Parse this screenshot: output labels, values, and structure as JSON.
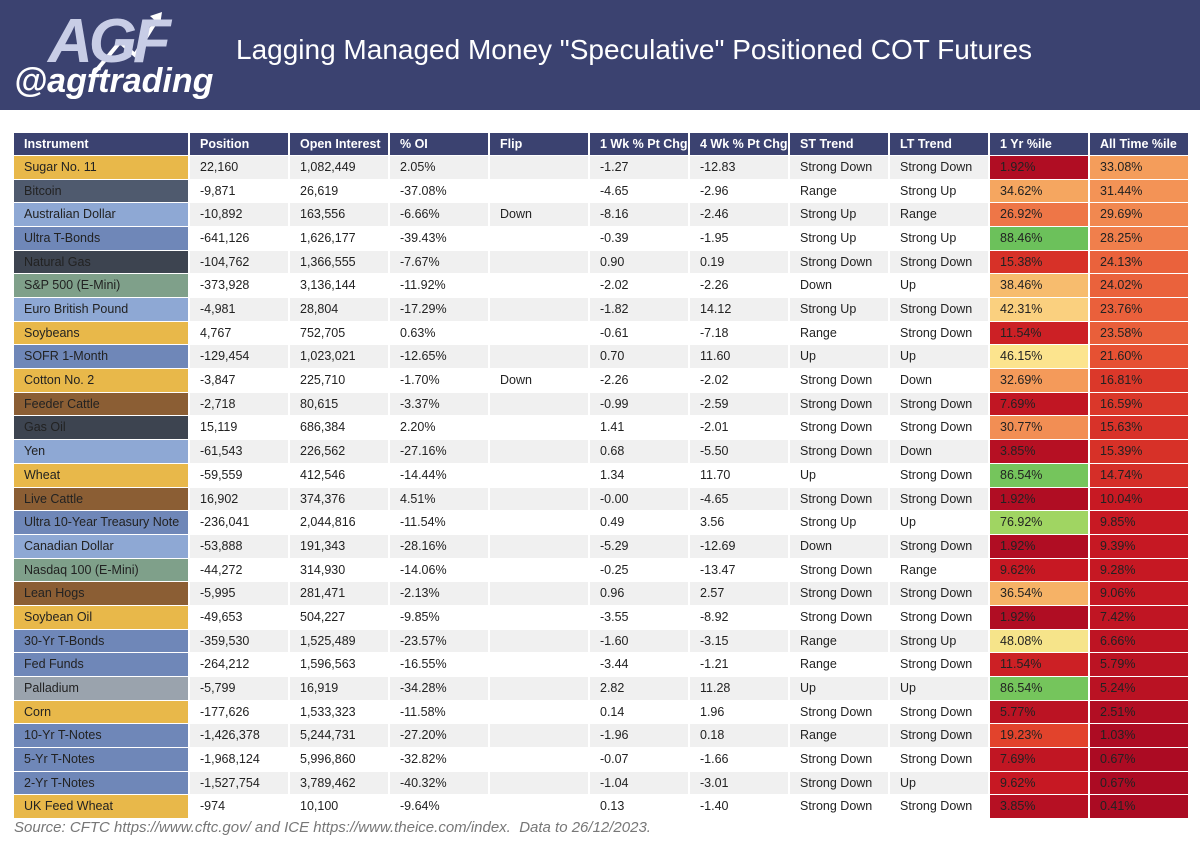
{
  "header": {
    "logo_mark": "AGF",
    "logo_text": "@agftrading",
    "title": "Lagging Managed Money \"Speculative\" Positioned COT Futures"
  },
  "table": {
    "columns": [
      "Instrument",
      "Position",
      "Open Interest",
      "% OI",
      "Flip",
      "1 Wk % Pt Chg",
      "4 Wk % Pt Chg",
      "ST Trend",
      "LT Trend",
      "1 Yr %ile",
      "All Time %ile"
    ],
    "instrument_colors": [
      "#e8b84a",
      "#4f5a6e",
      "#8ea8d4",
      "#6f87b8",
      "#3d4450",
      "#7fa08a",
      "#8ea8d4",
      "#e8b84a",
      "#6f87b8",
      "#e8b84a",
      "#8b5e34",
      "#3d4450",
      "#8ea8d4",
      "#e8b84a",
      "#8b5e34",
      "#6f87b8",
      "#8ea8d4",
      "#7fa08a",
      "#8b5e34",
      "#e8b84a",
      "#6f87b8",
      "#6f87b8",
      "#9aa3ad",
      "#e8b84a",
      "#6f87b8",
      "#6f87b8",
      "#6f87b8",
      "#e8b84a"
    ],
    "rows": [
      [
        "Sugar No. 11",
        "22,160",
        "1,082,449",
        "2.05%",
        null,
        "-1.27",
        "-12.83",
        "Strong Down",
        "Strong Down",
        "1.92%",
        "33.08%"
      ],
      [
        "Bitcoin",
        "-9,871",
        "26,619",
        "-37.08%",
        null,
        "-4.65",
        "-2.96",
        "Range",
        "Strong Up",
        "34.62%",
        "31.44%"
      ],
      [
        "Australian Dollar",
        "-10,892",
        "163,556",
        "-6.66%",
        "Down",
        "-8.16",
        "-2.46",
        "Strong Up",
        "Range",
        "26.92%",
        "29.69%"
      ],
      [
        "Ultra T-Bonds",
        "-641,126",
        "1,626,177",
        "-39.43%",
        null,
        "-0.39",
        "-1.95",
        "Strong Up",
        "Strong Up",
        "88.46%",
        "28.25%"
      ],
      [
        "Natural Gas",
        "-104,762",
        "1,366,555",
        "-7.67%",
        null,
        "0.90",
        "0.19",
        "Strong Down",
        "Strong Down",
        "15.38%",
        "24.13%"
      ],
      [
        "S&P 500 (E-Mini)",
        "-373,928",
        "3,136,144",
        "-11.92%",
        null,
        "-2.02",
        "-2.26",
        "Down",
        "Up",
        "38.46%",
        "24.02%"
      ],
      [
        "Euro British Pound",
        "-4,981",
        "28,804",
        "-17.29%",
        null,
        "-1.82",
        "14.12",
        "Strong Up",
        "Strong Down",
        "42.31%",
        "23.76%"
      ],
      [
        "Soybeans",
        "4,767",
        "752,705",
        "0.63%",
        null,
        "-0.61",
        "-7.18",
        "Range",
        "Strong Down",
        "11.54%",
        "23.58%"
      ],
      [
        "SOFR 1-Month",
        "-129,454",
        "1,023,021",
        "-12.65%",
        null,
        "0.70",
        "11.60",
        "Up",
        "Up",
        "46.15%",
        "21.60%"
      ],
      [
        "Cotton No. 2",
        "-3,847",
        "225,710",
        "-1.70%",
        "Down",
        "-2.26",
        "-2.02",
        "Strong Down",
        "Down",
        "32.69%",
        "16.81%"
      ],
      [
        "Feeder Cattle",
        "-2,718",
        "80,615",
        "-3.37%",
        null,
        "-0.99",
        "-2.59",
        "Strong Down",
        "Strong Down",
        "7.69%",
        "16.59%"
      ],
      [
        "Gas Oil",
        "15,119",
        "686,384",
        "2.20%",
        null,
        "1.41",
        "-2.01",
        "Strong Down",
        "Strong Down",
        "30.77%",
        "15.63%"
      ],
      [
        "Yen",
        "-61,543",
        "226,562",
        "-27.16%",
        null,
        "0.68",
        "-5.50",
        "Strong Down",
        "Down",
        "3.85%",
        "15.39%"
      ],
      [
        "Wheat",
        "-59,559",
        "412,546",
        "-14.44%",
        null,
        "1.34",
        "11.70",
        "Up",
        "Strong Down",
        "86.54%",
        "14.74%"
      ],
      [
        "Live Cattle",
        "16,902",
        "374,376",
        "4.51%",
        null,
        "-0.00",
        "-4.65",
        "Strong Down",
        "Strong Down",
        "1.92%",
        "10.04%"
      ],
      [
        "Ultra 10-Year Treasury Note",
        "-236,041",
        "2,044,816",
        "-11.54%",
        null,
        "0.49",
        "3.56",
        "Strong Up",
        "Up",
        "76.92%",
        "9.85%"
      ],
      [
        "Canadian Dollar",
        "-53,888",
        "191,343",
        "-28.16%",
        null,
        "-5.29",
        "-12.69",
        "Down",
        "Strong Down",
        "1.92%",
        "9.39%"
      ],
      [
        "Nasdaq 100 (E-Mini)",
        "-44,272",
        "314,930",
        "-14.06%",
        null,
        "-0.25",
        "-13.47",
        "Strong Down",
        "Range",
        "9.62%",
        "9.28%"
      ],
      [
        "Lean Hogs",
        "-5,995",
        "281,471",
        "-2.13%",
        null,
        "0.96",
        "2.57",
        "Strong Down",
        "Strong Down",
        "36.54%",
        "9.06%"
      ],
      [
        "Soybean Oil",
        "-49,653",
        "504,227",
        "-9.85%",
        null,
        "-3.55",
        "-8.92",
        "Strong Down",
        "Strong Down",
        "1.92%",
        "7.42%"
      ],
      [
        "30-Yr T-Bonds",
        "-359,530",
        "1,525,489",
        "-23.57%",
        null,
        "-1.60",
        "-3.15",
        "Range",
        "Strong Up",
        "48.08%",
        "6.66%"
      ],
      [
        "Fed Funds",
        "-264,212",
        "1,596,563",
        "-16.55%",
        null,
        "-3.44",
        "-1.21",
        "Range",
        "Strong Down",
        "11.54%",
        "5.79%"
      ],
      [
        "Palladium",
        "-5,799",
        "16,919",
        "-34.28%",
        null,
        "2.82",
        "11.28",
        "Up",
        "Up",
        "86.54%",
        "5.24%"
      ],
      [
        "Corn",
        "-177,626",
        "1,533,323",
        "-11.58%",
        null,
        "0.14",
        "1.96",
        "Strong Down",
        "Strong Down",
        "5.77%",
        "2.51%"
      ],
      [
        "10-Yr T-Notes",
        "-1,426,378",
        "5,244,731",
        "-27.20%",
        null,
        "-1.96",
        "0.18",
        "Range",
        "Strong Down",
        "19.23%",
        "1.03%"
      ],
      [
        "5-Yr T-Notes",
        "-1,968,124",
        "5,996,860",
        "-32.82%",
        null,
        "-0.07",
        "-1.66",
        "Strong Down",
        "Strong Down",
        "7.69%",
        "0.67%"
      ],
      [
        "2-Yr T-Notes",
        "-1,527,754",
        "3,789,462",
        "-40.32%",
        null,
        "-1.04",
        "-3.01",
        "Strong Down",
        "Up",
        "9.62%",
        "0.67%"
      ],
      [
        "UK Feed Wheat",
        "-974",
        "10,100",
        "-9.64%",
        null,
        "0.13",
        "-1.40",
        "Strong Down",
        "Strong Down",
        "3.85%",
        "0.41%"
      ]
    ]
  },
  "footer": {
    "source": "Source: CFTC https://www.cftc.gov/ and ICE https://www.theice.com/index.  Data to 26/12/2023."
  }
}
